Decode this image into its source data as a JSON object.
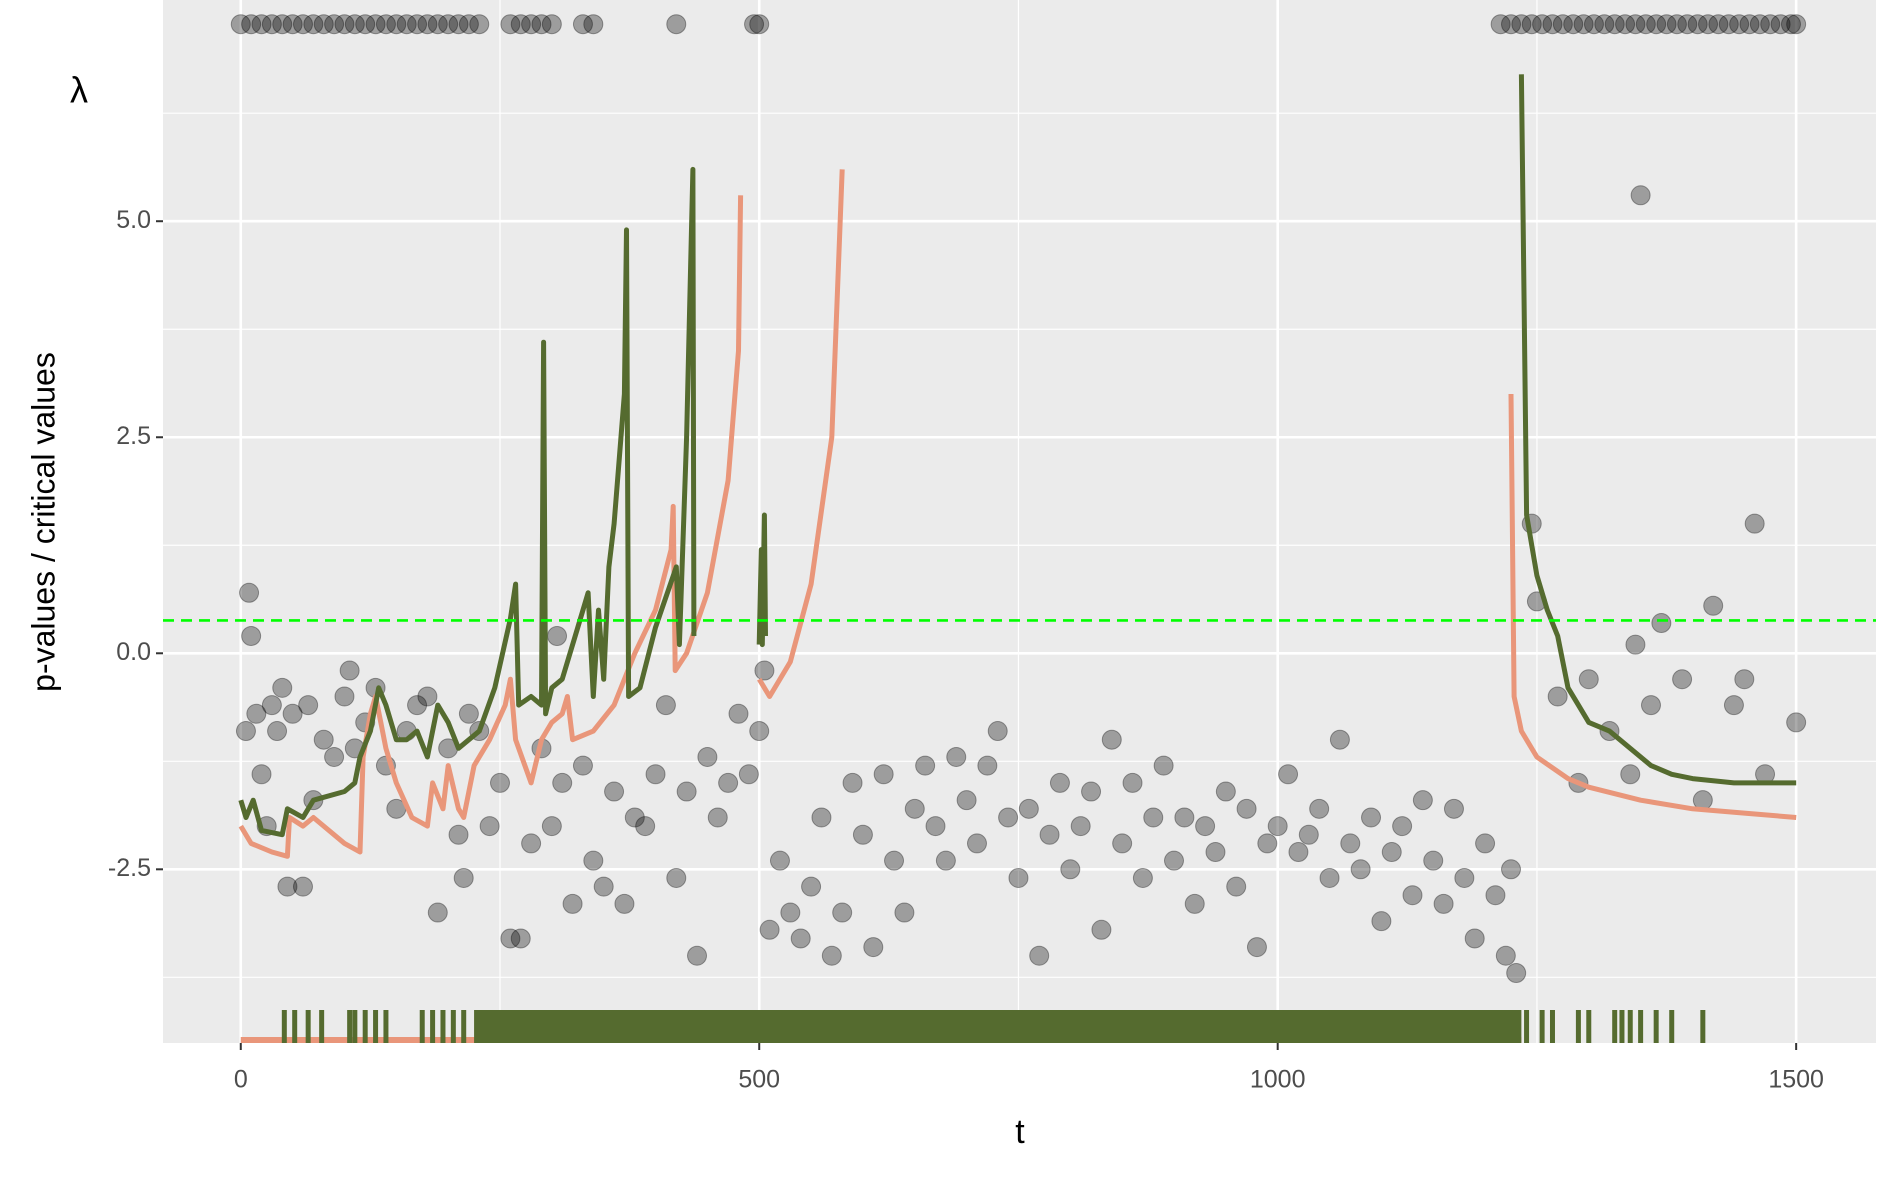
{
  "chart_data": {
    "type": "scatter",
    "x_label": "t",
    "y_label": "p-values / critical values",
    "annotation": "λ",
    "xlim": [
      -75,
      1577
    ],
    "ylim": [
      -4.51,
      7.56
    ],
    "xticks": [
      0,
      500,
      1000,
      1500
    ],
    "x_minor_ticks": [
      250,
      750,
      1250
    ],
    "yticks": [
      -2.5,
      {
        "value": 0,
        "label": "0.0"
      },
      2.5,
      {
        "value": 5,
        "label": "5.0"
      }
    ],
    "y_minor_ticks": [
      -3.75,
      -1.25,
      1.25,
      3.75,
      6.25
    ],
    "grid": true,
    "background": "#ebebeb",
    "point_color": "#000000",
    "hline": {
      "value": 0.38,
      "color": "#00ff00"
    },
    "points": [
      {
        "x": [
          5,
          8,
          10,
          15,
          20,
          25,
          30,
          35,
          40,
          45,
          50,
          60,
          65,
          70,
          80,
          90,
          100,
          105,
          110,
          120,
          130,
          140,
          150,
          160,
          170,
          180,
          190,
          200,
          210,
          215,
          220,
          230,
          240,
          250,
          260,
          270,
          280,
          290,
          300,
          305,
          310,
          320,
          330,
          340,
          350,
          360,
          370,
          380,
          390,
          400,
          410,
          420,
          430,
          440,
          450,
          460,
          470,
          480,
          490,
          500,
          505,
          510,
          520,
          530,
          540,
          550,
          560,
          570,
          580,
          590,
          600,
          610,
          620,
          630,
          640,
          650,
          660,
          670,
          680,
          690,
          700,
          710,
          720,
          730,
          740,
          750,
          760,
          770,
          780,
          790,
          800,
          810,
          820,
          830,
          840,
          850,
          860,
          870,
          880,
          890,
          900,
          910,
          920,
          930,
          940,
          950,
          960,
          970,
          980,
          990,
          1000,
          1010,
          1020,
          1030,
          1040,
          1050,
          1060,
          1070,
          1080,
          1090,
          1100,
          1110,
          1120,
          1130,
          1140,
          1150,
          1160,
          1170,
          1180,
          1190,
          1200,
          1210,
          1220,
          1225,
          1230,
          1245,
          1250,
          1270,
          1290,
          1300,
          1320,
          1340,
          1345,
          1350,
          1360,
          1370,
          1390,
          1410,
          1420,
          1440,
          1450,
          1460,
          1470,
          1500
        ],
        "values": [
          -0.9,
          0.7,
          0.2,
          -0.7,
          -1.4,
          -2.0,
          -0.6,
          -0.9,
          -0.4,
          -2.7,
          -0.7,
          -2.7,
          -0.6,
          -1.7,
          -1.0,
          -1.2,
          -0.5,
          -0.2,
          -1.1,
          -0.8,
          -0.4,
          -1.3,
          -1.8,
          -0.9,
          -0.6,
          -0.5,
          -3.0,
          -1.1,
          -2.1,
          -2.6,
          -0.7,
          -0.9,
          -2.0,
          -1.5,
          -3.3,
          -3.3,
          -2.2,
          -1.1,
          -2.0,
          0.2,
          -1.5,
          -2.9,
          -1.3,
          -2.4,
          -2.7,
          -1.6,
          -2.9,
          -1.9,
          -2.0,
          -1.4,
          -0.6,
          -2.6,
          -1.6,
          -3.5,
          -1.2,
          -1.9,
          -1.5,
          -0.7,
          -1.4,
          -0.9,
          -0.2,
          -3.2,
          -2.4,
          -3.0,
          -3.3,
          -2.7,
          -1.9,
          -3.5,
          -3.0,
          -1.5,
          -2.1,
          -3.4,
          -1.4,
          -2.4,
          -3.0,
          -1.8,
          -1.3,
          -2.0,
          -2.4,
          -1.2,
          -1.7,
          -2.2,
          -1.3,
          -0.9,
          -1.9,
          -2.6,
          -1.8,
          -3.5,
          -2.1,
          -1.5,
          -2.5,
          -2.0,
          -1.6,
          -3.2,
          -1.0,
          -2.2,
          -1.5,
          -2.6,
          -1.9,
          -1.3,
          -2.4,
          -1.9,
          -2.9,
          -2.0,
          -2.3,
          -1.6,
          -2.7,
          -1.8,
          -3.4,
          -2.2,
          -2.0,
          -1.4,
          -2.3,
          -2.1,
          -1.8,
          -2.6,
          -1.0,
          -2.2,
          -2.5,
          -1.9,
          -3.1,
          -2.3,
          -2.0,
          -2.8,
          -1.7,
          -2.4,
          -2.9,
          -1.8,
          -2.6,
          -3.3,
          -2.2,
          -2.8,
          -3.5,
          -2.5,
          -3.7,
          1.5,
          0.6,
          -0.5,
          -1.5,
          -0.3,
          -0.9,
          -1.4,
          0.1,
          5.3,
          -0.6,
          0.35,
          -0.3,
          -1.7,
          0.55,
          -0.6,
          -0.3,
          1.5,
          -1.4,
          -0.8
        ]
      },
      {
        "x": [
          0,
          10,
          20,
          30,
          40,
          50,
          60,
          70,
          80,
          90,
          100,
          110,
          120,
          130,
          140,
          150,
          160,
          170,
          180,
          190,
          200,
          210,
          220,
          230,
          260,
          270,
          280,
          290,
          300,
          330,
          340,
          420,
          495,
          500,
          1215,
          1225,
          1235,
          1245,
          1255,
          1265,
          1275,
          1285,
          1295,
          1305,
          1315,
          1325,
          1335,
          1345,
          1355,
          1365,
          1375,
          1385,
          1395,
          1405,
          1415,
          1425,
          1435,
          1445,
          1455,
          1465,
          1475,
          1485,
          1495,
          1500
        ],
        "values": [
          7.28,
          7.28,
          7.28,
          7.28,
          7.28,
          7.28,
          7.28,
          7.28,
          7.28,
          7.28,
          7.28,
          7.28,
          7.28,
          7.28,
          7.28,
          7.28,
          7.28,
          7.28,
          7.28,
          7.28,
          7.28,
          7.28,
          7.28,
          7.28,
          7.28,
          7.28,
          7.28,
          7.28,
          7.28,
          7.28,
          7.28,
          7.28,
          7.28,
          7.28,
          7.28,
          7.28,
          7.28,
          7.28,
          7.28,
          7.28,
          7.28,
          7.28,
          7.28,
          7.28,
          7.28,
          7.28,
          7.28,
          7.28,
          7.28,
          7.28,
          7.28,
          7.28,
          7.28,
          7.28,
          7.28,
          7.28,
          7.28,
          7.28,
          7.28,
          7.28,
          7.28,
          7.28,
          7.28,
          7.28
        ]
      }
    ],
    "lines": [
      {
        "color": "#e9967a",
        "x": [
          0,
          10,
          30,
          45,
          47,
          60,
          70,
          100,
          115,
          118,
          125,
          130,
          135,
          140,
          150,
          165,
          180,
          185,
          195,
          200,
          210,
          215,
          225,
          240,
          255,
          260,
          265,
          280,
          290,
          300,
          310,
          315,
          320,
          340,
          360,
          380,
          400,
          415,
          417,
          419,
          430,
          450,
          470,
          480,
          482,
          490,
          500,
          510,
          530,
          550,
          570,
          580,
          1000,
          1225,
          1228,
          1235,
          1250,
          1280,
          1300,
          1350,
          1400,
          1450,
          1500
        ],
        "values": [
          -2.0,
          -2.2,
          -2.3,
          -2.35,
          -1.9,
          -2.0,
          -1.9,
          -2.2,
          -2.3,
          -1.2,
          -0.7,
          -0.5,
          -0.8,
          -1.1,
          -1.5,
          -1.9,
          -2.0,
          -1.5,
          -1.8,
          -1.3,
          -1.8,
          -1.9,
          -1.3,
          -1.0,
          -0.6,
          -0.3,
          -1.0,
          -1.5,
          -1.0,
          -0.8,
          -0.7,
          -0.5,
          -1.0,
          -0.9,
          -0.6,
          0,
          0.5,
          1.2,
          1.7,
          -0.2,
          0,
          0.7,
          2.0,
          3.5,
          5.3,
          null,
          -0.3,
          -0.5,
          -0.1,
          0.8,
          2.5,
          5.6,
          null,
          3.0,
          -0.5,
          -0.9,
          -1.2,
          -1.45,
          -1.55,
          -1.7,
          -1.8,
          -1.85,
          -1.9
        ]
      },
      {
        "color": "#556b2f",
        "x": [
          0,
          5,
          12,
          20,
          40,
          45,
          60,
          70,
          100,
          110,
          115,
          125,
          133,
          140,
          150,
          160,
          170,
          180,
          190,
          200,
          210,
          230,
          245,
          260,
          265,
          268,
          280,
          290,
          292,
          294,
          300,
          310,
          325,
          335,
          340,
          345,
          350,
          355,
          360,
          370,
          372,
          374,
          385,
          400,
          420,
          423,
          430,
          436,
          437,
          470,
          500,
          502,
          503,
          505,
          506,
          1220,
          1235,
          1240,
          1250,
          1260,
          1270,
          1280,
          1290,
          1300,
          1320,
          1340,
          1360,
          1380,
          1400,
          1440,
          1500
        ],
        "values": [
          -1.7,
          -1.9,
          -1.7,
          -2.05,
          -2.1,
          -1.8,
          -1.9,
          -1.7,
          -1.6,
          -1.5,
          -1.2,
          -0.9,
          -0.4,
          -0.6,
          -1.0,
          -1.0,
          -0.9,
          -1.2,
          -0.6,
          -0.8,
          -1.1,
          -0.9,
          -0.4,
          0.4,
          0.8,
          -0.6,
          -0.5,
          -0.6,
          3.6,
          -0.7,
          -0.4,
          -0.3,
          0.3,
          0.7,
          -0.5,
          0.5,
          -0.3,
          1.0,
          1.5,
          3.0,
          4.9,
          -0.5,
          -0.4,
          0.3,
          1.0,
          0.1,
          2.5,
          5.6,
          0.2,
          null,
          0.1,
          1.2,
          0.1,
          1.6,
          0.2,
          null,
          6.7,
          1.6,
          0.9,
          0.5,
          0.2,
          -0.4,
          -0.6,
          -0.8,
          -0.9,
          -1.1,
          -1.3,
          -1.4,
          -1.45,
          -1.5,
          -1.5
        ]
      }
    ],
    "rugs": [
      {
        "color": "#e9967a",
        "x": [],
        "spans": [
          [
            0,
            1235
          ]
        ]
      },
      {
        "color": "#556b2f",
        "x": [
          42,
          52,
          65,
          78,
          105,
          110,
          120,
          130,
          140,
          175,
          185,
          195,
          205,
          215,
          1240,
          1255,
          1265,
          1290,
          1300,
          1325,
          1332,
          1340,
          1350,
          1365,
          1380,
          1410
        ],
        "spans": [
          [
            225,
            1235
          ]
        ]
      }
    ]
  }
}
